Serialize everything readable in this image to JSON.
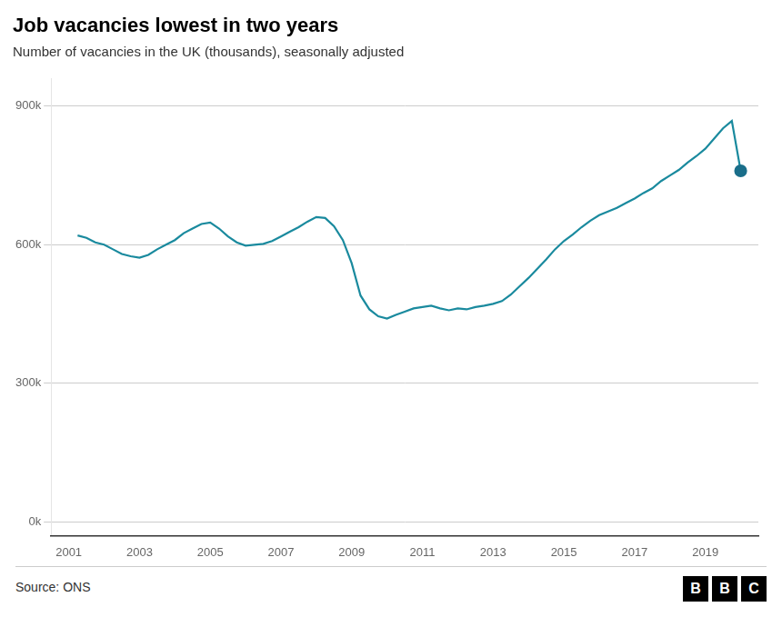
{
  "chart_data": {
    "type": "line",
    "title": "Job vacancies lowest in two years",
    "subtitle": "Number of vacancies in the UK (thousands), seasonally adjusted",
    "annotations": [
      "Source: ONS",
      "BBC"
    ],
    "x": [
      2001.25,
      2001.5,
      2001.75,
      2002.0,
      2002.25,
      2002.5,
      2002.75,
      2003.0,
      2003.25,
      2003.5,
      2003.75,
      2004.0,
      2004.25,
      2004.5,
      2004.75,
      2005.0,
      2005.25,
      2005.5,
      2005.75,
      2006.0,
      2006.25,
      2006.5,
      2006.75,
      2007.0,
      2007.25,
      2007.5,
      2007.75,
      2008.0,
      2008.25,
      2008.5,
      2008.75,
      2009.0,
      2009.25,
      2009.5,
      2009.75,
      2010.0,
      2010.25,
      2010.5,
      2010.75,
      2011.0,
      2011.25,
      2011.5,
      2011.75,
      2012.0,
      2012.25,
      2012.5,
      2012.75,
      2013.0,
      2013.25,
      2013.5,
      2013.75,
      2014.0,
      2014.25,
      2014.5,
      2014.75,
      2015.0,
      2015.25,
      2015.5,
      2015.75,
      2016.0,
      2016.25,
      2016.5,
      2016.75,
      2017.0,
      2017.25,
      2017.5,
      2017.75,
      2018.0,
      2018.25,
      2018.5,
      2018.75,
      2019.0,
      2019.25,
      2019.5,
      2019.75,
      2020.0
    ],
    "series": [
      {
        "color": "#1a8a9e",
        "marker": "none",
        "values": [
          620000,
          615000,
          605000,
          600000,
          590000,
          580000,
          575000,
          572000,
          578000,
          590000,
          600000,
          610000,
          625000,
          635000,
          645000,
          648000,
          635000,
          618000,
          605000,
          598000,
          600000,
          602000,
          608000,
          618000,
          628000,
          638000,
          650000,
          660000,
          658000,
          640000,
          610000,
          560000,
          490000,
          460000,
          445000,
          440000,
          448000,
          455000,
          462000,
          465000,
          468000,
          462000,
          458000,
          462000,
          460000,
          465000,
          468000,
          472000,
          478000,
          492000,
          510000,
          528000,
          548000,
          568000,
          590000,
          608000,
          622000,
          638000,
          652000,
          664000,
          672000,
          680000,
          690000,
          700000,
          712000,
          722000,
          738000,
          750000,
          762000,
          778000,
          792000,
          808000,
          830000,
          852000,
          868000,
          760000
        ]
      },
      {
        "type": "scatter",
        "color": "#1a6e8a",
        "marker": "circle",
        "x": [
          2020.0
        ],
        "values": [
          760000
        ]
      }
    ],
    "xlim": [
      2000.5,
      2020.5
    ],
    "xticks": [
      2001,
      2003,
      2005,
      2007,
      2009,
      2011,
      2013,
      2015,
      2017,
      2019
    ],
    "ylim": [
      -30000,
      960000
    ],
    "yticks": [
      {
        "value": 0,
        "label": "0k"
      },
      {
        "value": 300000,
        "label": "300k"
      },
      {
        "value": 600000,
        "label": "600k"
      },
      {
        "value": 900000,
        "label": "900k"
      }
    ],
    "grid": "y",
    "legend": false
  }
}
